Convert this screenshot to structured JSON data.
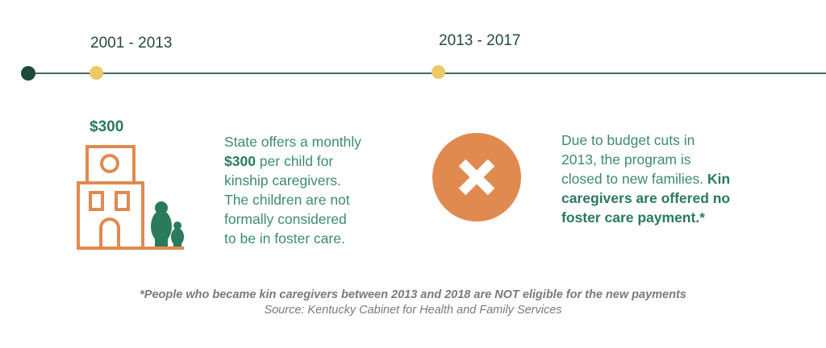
{
  "timeline": {
    "periods": [
      {
        "label": "2001 - 2013"
      },
      {
        "label": "2013 - 2017"
      }
    ]
  },
  "left": {
    "amount_label": "$300",
    "lines": [
      {
        "text": "State offers a monthly"
      },
      {
        "bold": "$300",
        "text": " per child for"
      },
      {
        "text": "kinship caregivers."
      },
      {
        "text": "The children are not"
      },
      {
        "text": "formally considered"
      },
      {
        "text": "to be in foster care."
      }
    ]
  },
  "right": {
    "lines": [
      {
        "text": "Due to budget cuts in"
      },
      {
        "text": "2013, the program is"
      },
      {
        "text": "closed to new families. ",
        "bold": "Kin"
      },
      {
        "bold": "caregivers are offered no"
      },
      {
        "bold": "foster care payment.*"
      }
    ]
  },
  "footnote": "*People who became kin caregivers between 2013 and 2018 are NOT eligible for the new payments",
  "source": "Source: Kentucky Cabinet for Health and Family Services",
  "colors": {
    "green": "#2a7a5c",
    "orange": "#e08a50",
    "yellow": "#ecc965",
    "dark": "#1d4a3c"
  }
}
